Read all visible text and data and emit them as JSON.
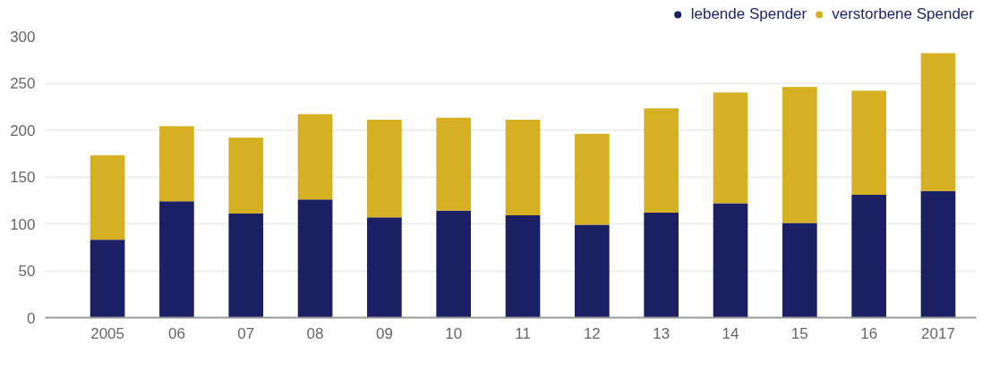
{
  "chart_data": {
    "type": "bar",
    "stacked": true,
    "categories": [
      "2005",
      "06",
      "07",
      "08",
      "09",
      "10",
      "11",
      "12",
      "13",
      "14",
      "15",
      "16",
      "2017"
    ],
    "series": [
      {
        "name": "lebende Spender",
        "color": "#1b1f63",
        "values": [
          83,
          124,
          111,
          126,
          107,
          114,
          109,
          99,
          112,
          122,
          101,
          131,
          135
        ]
      },
      {
        "name": "verstorbene Spender",
        "color": "#d5b023",
        "values": [
          90,
          80,
          81,
          91,
          104,
          99,
          102,
          97,
          111,
          118,
          145,
          111,
          147
        ]
      }
    ],
    "ylim": [
      0,
      300
    ],
    "yticks": [
      0,
      50,
      100,
      150,
      200,
      250,
      300
    ],
    "grid": "y",
    "legend": "top right"
  }
}
